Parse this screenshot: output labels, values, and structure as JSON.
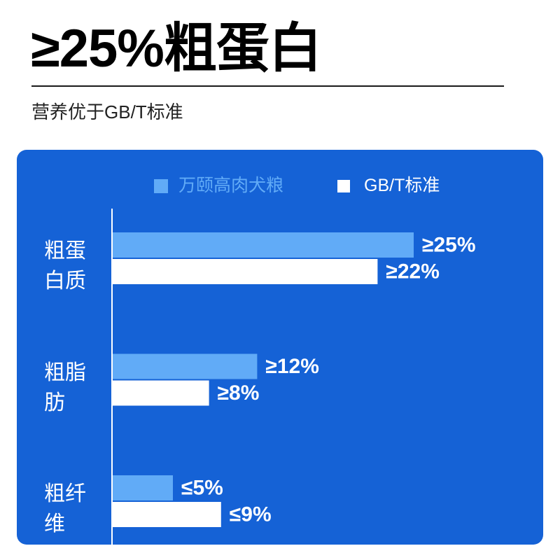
{
  "header": {
    "title": "≥25%粗蛋白",
    "subtitle": "营养优于GB/T标准"
  },
  "colors": {
    "panel_bg": "#1562d6",
    "title": "#000000",
    "axis": "#ffffff"
  },
  "chart_data": {
    "type": "bar",
    "orientation": "horizontal",
    "categories": [
      "粗蛋白质",
      "粗脂肪",
      "粗纤维"
    ],
    "series": [
      {
        "name": "万颐高肉犬粮",
        "color": "#61abf7",
        "values": [
          25,
          12,
          5
        ],
        "labels": [
          "≥25%",
          "≥12%",
          "≤5%"
        ]
      },
      {
        "name": "GB/T标准",
        "color": "#ffffff",
        "values": [
          22,
          8,
          9
        ],
        "labels": [
          "≥22%",
          "≥8%",
          "≤9%"
        ]
      }
    ],
    "xlabel": "",
    "ylabel": "",
    "grid": false,
    "legend": "top"
  }
}
